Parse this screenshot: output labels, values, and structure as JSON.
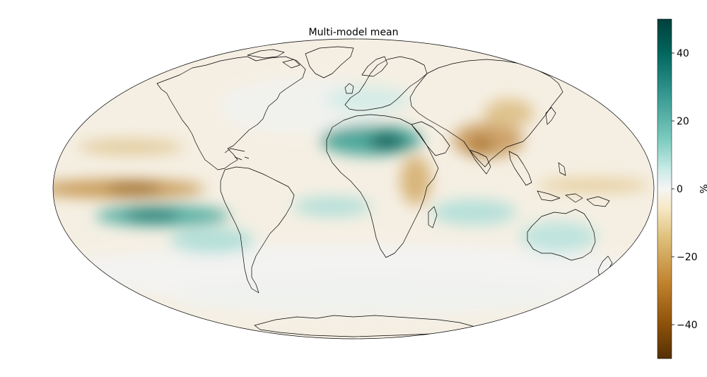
{
  "title": "Multi-model mean",
  "colorbar": {
    "label": "%",
    "min": -50,
    "max": 50,
    "ticks": [
      {
        "value": 40,
        "label": "40"
      },
      {
        "value": 20,
        "label": "20"
      },
      {
        "value": 0,
        "label": "0"
      },
      {
        "value": -20,
        "label": "−20"
      },
      {
        "value": -40,
        "label": "−40"
      }
    ],
    "colors": {
      "dark_positive": "#00403a",
      "positive": "#35978f",
      "light_positive": "#c7eae5",
      "neutral": "#f5f5f5",
      "light_negative": "#f6e8c3",
      "negative": "#bf812d",
      "dark_negative": "#543005"
    }
  },
  "map": {
    "projection": "mollweide",
    "variable_unit": "%",
    "coastline_color": "#000000",
    "ocean_background": "#f7f4ee"
  }
}
